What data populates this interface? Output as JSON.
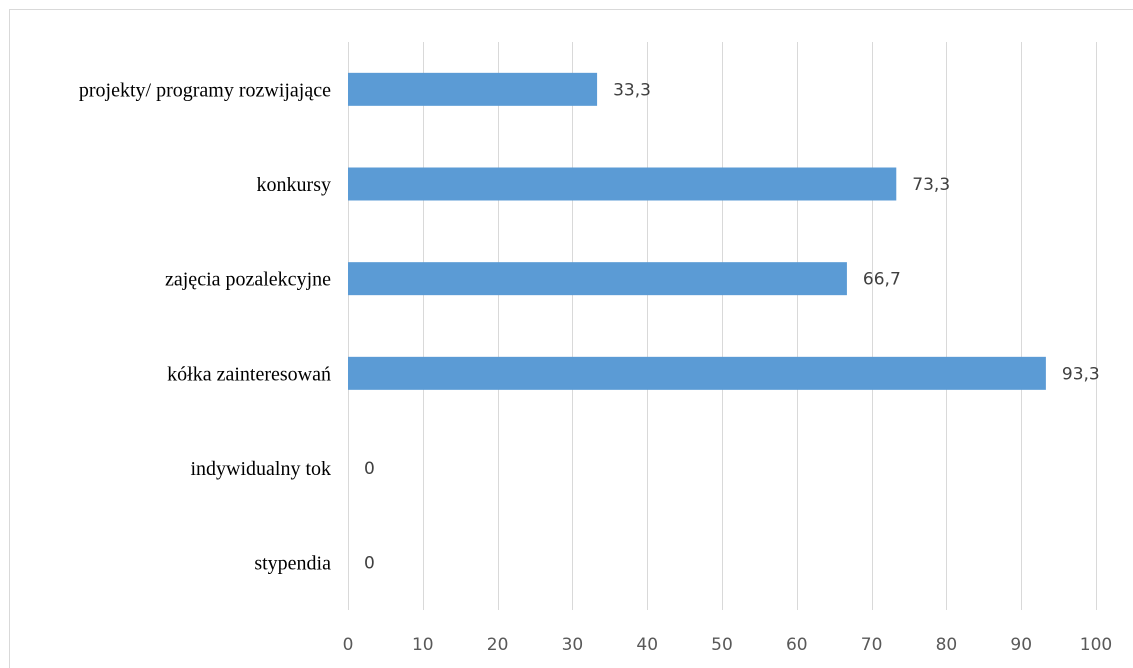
{
  "chart_data": {
    "type": "bar",
    "orientation": "horizontal",
    "categories": [
      "projekty/ programy rozwijające",
      "konkursy",
      "zajęcia pozalekcyjne",
      "kółka zainteresowań",
      "indywidualny tok",
      "stypendia"
    ],
    "values": [
      33.3,
      73.3,
      66.7,
      93.3,
      0,
      0
    ],
    "data_labels": [
      "33,3",
      "73,3",
      "66,7",
      "93,3",
      "0",
      "0"
    ],
    "x_ticks": [
      "0",
      "10",
      "20",
      "30",
      "40",
      "50",
      "60",
      "70",
      "80",
      "90",
      "100"
    ],
    "xlim": [
      0,
      100
    ],
    "bar_color": "#5b9bd5",
    "grid": true,
    "legend": "none"
  }
}
